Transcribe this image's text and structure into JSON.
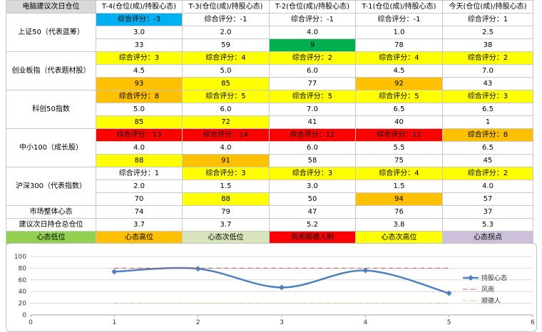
{
  "table": {
    "corner": "电脑建议次日仓位",
    "columns": [
      "T-4(仓位(成)/持股心态)",
      "T-3(仓位(成)/持股心态)",
      "T-2(仓位(成)/持股心态)",
      "T-1(仓位(成)/持股心态)",
      "今天(仓位(成)/持股心态)"
    ],
    "groups": [
      {
        "name": "上证50（代表蓝筹）",
        "score": [
          "综合评分：-3",
          "综合评分：-1",
          "综合评分：-1",
          "综合评分：-1",
          "综合评分：1"
        ],
        "score_color": [
          "blue",
          "",
          "",
          "",
          ""
        ],
        "position": [
          "3.0",
          "2.0",
          "4.0",
          "1.0",
          "2.5"
        ],
        "mood": [
          "33",
          "59",
          "9",
          "78",
          "38"
        ],
        "mood_color": [
          "",
          "",
          "green",
          "",
          ""
        ]
      },
      {
        "name": "创业板指（代表题材股）",
        "score": [
          "综合评分：3",
          "综合评分：4",
          "综合评分：2",
          "综合评分：4",
          "综合评分：2"
        ],
        "score_color": [
          "yellow",
          "yellow",
          "yellow",
          "yellow",
          "yellow"
        ],
        "position": [
          "4.5",
          "5.0",
          "6.0",
          "4.5",
          "7.0"
        ],
        "mood": [
          "93",
          "85",
          "77",
          "92",
          "43"
        ],
        "mood_color": [
          "orange",
          "yellow",
          "",
          "orange",
          ""
        ]
      },
      {
        "name": "科创50指数",
        "score": [
          "综合评分：8",
          "综合评分：5",
          "综合评分：5",
          "综合评分：5",
          "综合评分：3"
        ],
        "score_color": [
          "orange",
          "yellow",
          "yellow",
          "yellow",
          "yellow"
        ],
        "position": [
          "5.0",
          "6.0",
          "7.0",
          "6.5",
          "6.5"
        ],
        "mood": [
          "85",
          "72",
          "41",
          "40",
          "1"
        ],
        "mood_color": [
          "yellow",
          "yellow",
          "",
          "",
          ""
        ]
      },
      {
        "name": "中小100（成长股）",
        "score": [
          "综合评分：13",
          "综合评分：14",
          "综合评分：12",
          "综合评分：12",
          "综合评分：8"
        ],
        "score_color": [
          "red",
          "red",
          "red",
          "red",
          "orange"
        ],
        "position": [
          "4.0",
          "4.0",
          "6.0",
          "5.5",
          "6.5"
        ],
        "mood": [
          "88",
          "91",
          "58",
          "75",
          "45"
        ],
        "mood_color": [
          "yellow",
          "orange",
          "",
          "",
          ""
        ]
      },
      {
        "name": "沪深300（代表指数）",
        "score": [
          "综合评分：1",
          "综合评分：3",
          "综合评分：3",
          "综合评分：4",
          "综合评分：2"
        ],
        "score_color": [
          "",
          "yellow",
          "yellow",
          "yellow",
          "yellow"
        ],
        "position": [
          "2.0",
          "1.5",
          "3.0",
          "1.5",
          "4.0"
        ],
        "mood": [
          "70",
          "88",
          "50",
          "94",
          "57"
        ],
        "mood_color": [
          "",
          "yellow",
          "",
          "orange",
          ""
        ]
      }
    ],
    "market_mood": {
      "label": "市场整体心态",
      "values": [
        "74",
        "79",
        "47",
        "76",
        "37"
      ]
    },
    "total_position": {
      "label": "建议次日持仓总仓位",
      "values": [
        "3.7",
        "3.7",
        "5.2",
        "3.8",
        "5.3"
      ]
    },
    "status_legend": [
      {
        "label": "心态低位",
        "color": "#92d050"
      },
      {
        "label": "心态高位",
        "color": "#ffc000"
      },
      {
        "label": "心态次低位",
        "color": "#d8e4bc"
      },
      {
        "label": "风雨顺德人制",
        "color": "#ff0000"
      },
      {
        "label": "心态次高位",
        "color": "#ffff00"
      },
      {
        "label": "心态拐点",
        "color": "#ccc0da"
      }
    ]
  },
  "chart_data": {
    "type": "line",
    "x": [
      1,
      2,
      3,
      4,
      5
    ],
    "series": [
      {
        "name": "持股心态",
        "values": [
          74,
          79,
          47,
          76,
          37
        ],
        "color": "#4f81bd",
        "style": "smooth-marker"
      },
      {
        "name": "风雨",
        "values": [
          80,
          80,
          80,
          80,
          80
        ],
        "color": "#c0504d",
        "style": "dash-dot"
      },
      {
        "name": "顺德人",
        "values": [
          20,
          20,
          20,
          20,
          20
        ],
        "color": "#d9c79a",
        "style": "dash-dot"
      }
    ],
    "xlim": [
      0,
      6
    ],
    "ylim": [
      0,
      100
    ],
    "xticks": [
      0,
      1,
      2,
      3,
      4,
      5,
      6
    ],
    "yticks": [
      0,
      20,
      40,
      60,
      80,
      100
    ],
    "grid": "horizontal",
    "legend": "right",
    "title": "",
    "xlabel": "",
    "ylabel": ""
  }
}
